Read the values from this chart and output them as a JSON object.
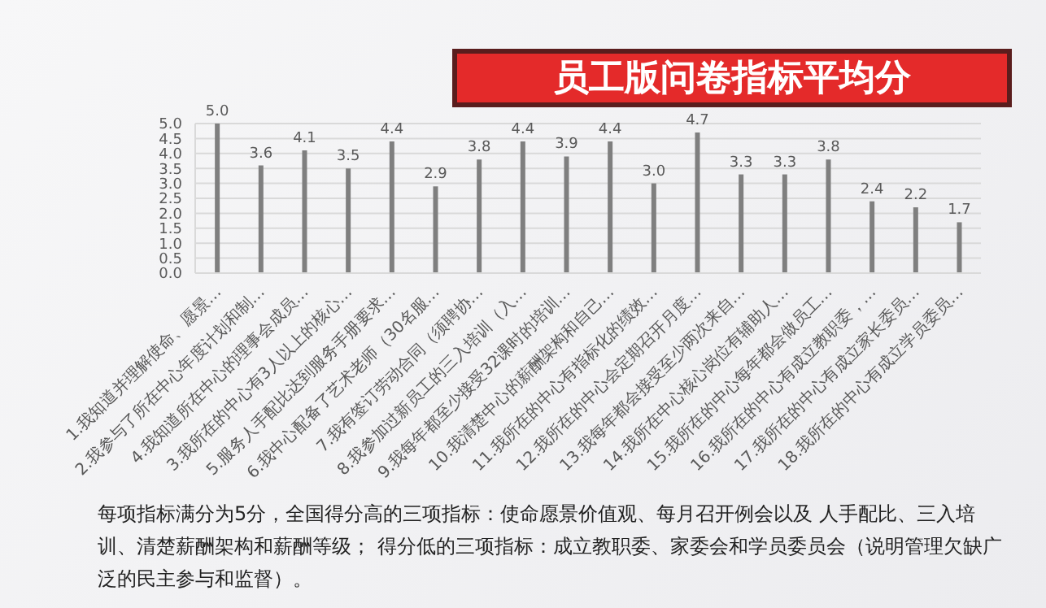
{
  "chart_data": {
    "type": "bar",
    "title": "员工版问卷指标平均分",
    "categories": [
      "1.我知道并理解使命、愿景…",
      "2.我参与了所在中心年度计划和制…",
      "4.我知道所在中心的理事会成员…",
      "3.我所在的中心有3人以上的核心…",
      "5.服务人手配比达到服务手册要求…",
      "6.我中心配备了艺术老师（30名服…",
      "7.我有签订劳动合同（须聘协…",
      "8.我参加过新员工的三入培训（入…",
      "9.我每年都至少接受32课时的培训…",
      "10.我清楚中心的薪酬架构和自己…",
      "11.我所在的中心有指标化的绩效…",
      "12.我所在的中心会定期召开月度…",
      "13.我每年都会接受至少两次来自…",
      "14.我所在中心核心岗位有辅助人…",
      "15.我所在的中心每年都会做员工…",
      "16.我所在的中心有成立教职委，…",
      "17.我所在的中心有成立家长委员…",
      "18.我所在的中心有成立学员委员…"
    ],
    "values": [
      5.0,
      3.6,
      4.1,
      3.5,
      4.4,
      2.9,
      3.8,
      4.4,
      3.9,
      4.4,
      3.0,
      4.7,
      3.3,
      3.3,
      3.8,
      2.4,
      2.2,
      1.7
    ],
    "value_labels": [
      "5.0",
      "3.6",
      "4.1",
      "3.5",
      "4.4",
      "2.9",
      "3.8",
      "4.4",
      "3.9",
      "4.4",
      "3.0",
      "4.7",
      "3.3",
      "3.3",
      "3.8",
      "2.4",
      "2.2",
      "1.7"
    ],
    "color": "#7f7f7f",
    "ylim": [
      0,
      5
    ],
    "yticks": [
      {
        "value": 0,
        "label": "0.0"
      },
      {
        "value": 0.5,
        "label": "0.5"
      },
      {
        "value": 1,
        "label": "1.0"
      },
      {
        "value": 1.5,
        "label": "1.5"
      },
      {
        "value": 2,
        "label": "2.0"
      },
      {
        "value": 2.5,
        "label": "2.5"
      },
      {
        "value": 3,
        "label": "3.0"
      },
      {
        "value": 3.5,
        "label": "3.5"
      },
      {
        "value": 4,
        "label": "4.0"
      },
      {
        "value": 4.5,
        "label": "4.5"
      },
      {
        "value": 5,
        "label": "5.0"
      }
    ],
    "grid": "y",
    "annotations": [
      "每项指标满分为5分，全国得分高的三项指标：使命愿景价值观、每月召开例会以及 人手配比、三入培训、清楚薪酬架构和薪酬等级； 得分低的三项指标：成立教职委、家委会和学员委员会（说明管理欠缺广泛的民主参与和监督）。"
    ]
  }
}
